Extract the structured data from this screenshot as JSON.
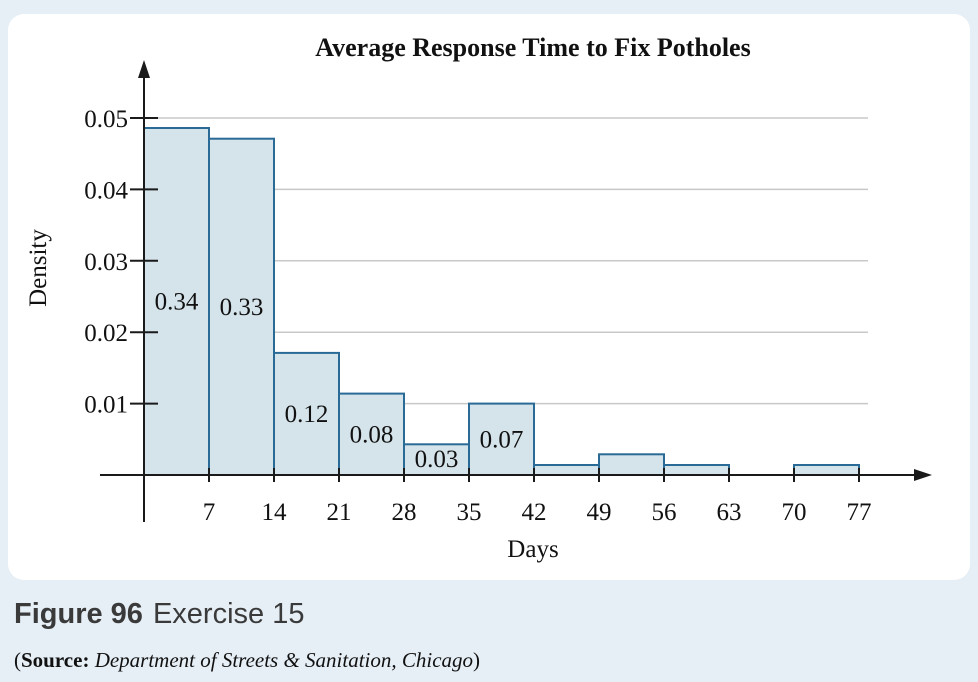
{
  "figure": {
    "label": "Figure 96",
    "exercise": "Exercise 15",
    "source_open": "(",
    "source_label": "Source:",
    "source_text": "Department of Streets & Sanitation, Chicago",
    "source_close": ")"
  },
  "colors": {
    "bar_fill": "#d5e3ea",
    "bar_stroke": "#2a6a96",
    "grid": "#c8c8c8",
    "axis": "#1a1a1a",
    "background": "#e6eff6"
  },
  "chart_data": {
    "type": "bar",
    "title": "Average Response Time to Fix Potholes",
    "xlabel": "Days",
    "ylabel": "Density",
    "xlim": [
      0,
      84
    ],
    "ylim": [
      0,
      0.055
    ],
    "xticks": [
      7,
      14,
      21,
      28,
      35,
      42,
      49,
      56,
      63,
      70,
      77
    ],
    "xtick_labels": [
      "7",
      "14",
      "21",
      "28",
      "35",
      "42",
      "49",
      "56",
      "63",
      "70",
      "77"
    ],
    "yticks": [
      0.01,
      0.02,
      0.03,
      0.04,
      0.05
    ],
    "ytick_labels": [
      "0.01",
      "0.02",
      "0.03",
      "0.04",
      "0.05"
    ],
    "grid": true,
    "bins": [
      {
        "start": 0,
        "end": 7,
        "density": 0.0486,
        "label": "0.34"
      },
      {
        "start": 7,
        "end": 14,
        "density": 0.0471,
        "label": "0.33"
      },
      {
        "start": 14,
        "end": 21,
        "density": 0.0171,
        "label": "0.12"
      },
      {
        "start": 21,
        "end": 28,
        "density": 0.0114,
        "label": "0.08"
      },
      {
        "start": 28,
        "end": 35,
        "density": 0.0043,
        "label": "0.03"
      },
      {
        "start": 35,
        "end": 42,
        "density": 0.01,
        "label": "0.07"
      },
      {
        "start": 42,
        "end": 49,
        "density": 0.0014,
        "label": ""
      },
      {
        "start": 49,
        "end": 56,
        "density": 0.0029,
        "label": ""
      },
      {
        "start": 56,
        "end": 63,
        "density": 0.0014,
        "label": ""
      },
      {
        "start": 63,
        "end": 70,
        "density": 0,
        "label": ""
      },
      {
        "start": 70,
        "end": 77,
        "density": 0.0014,
        "label": ""
      }
    ]
  }
}
